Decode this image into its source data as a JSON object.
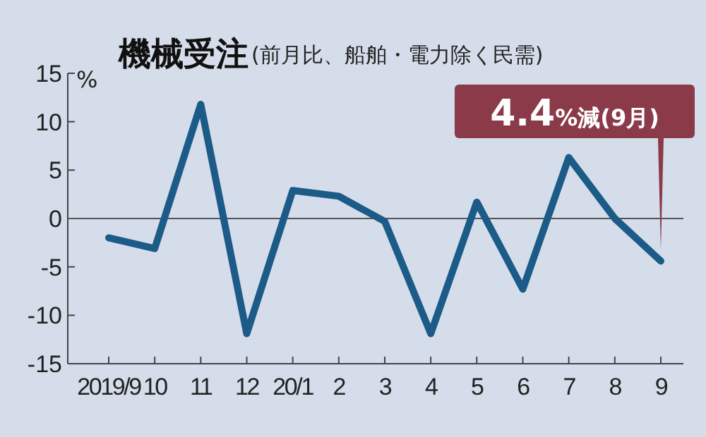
{
  "chart_data": {
    "type": "line",
    "title": "機械受注",
    "subtitle": "(前月比、船舶・電力除く民需)",
    "ylabel": "%",
    "categories": [
      "2019/9",
      "10",
      "11",
      "12",
      "20/1",
      "2",
      "3",
      "4",
      "5",
      "6",
      "7",
      "8",
      "9"
    ],
    "series": [
      {
        "color": "#1c5a88",
        "values": [
          -2.0,
          -3.1,
          11.8,
          -11.9,
          2.9,
          2.3,
          -0.3,
          -11.9,
          1.7,
          -7.3,
          6.3,
          0.0,
          -4.4
        ]
      }
    ],
    "ylim": [
      -15,
      15
    ],
    "yticks": [
      -15,
      -10,
      -5,
      0,
      5,
      10,
      15
    ],
    "ref_lines": [
      {
        "axis": "y",
        "value": 0,
        "color": "#555555"
      }
    ],
    "annotations": [
      {
        "text": "4.4%減(9月)",
        "x": "9",
        "y": -4.4
      }
    ],
    "marker": "none",
    "line_style": "solid"
  }
}
